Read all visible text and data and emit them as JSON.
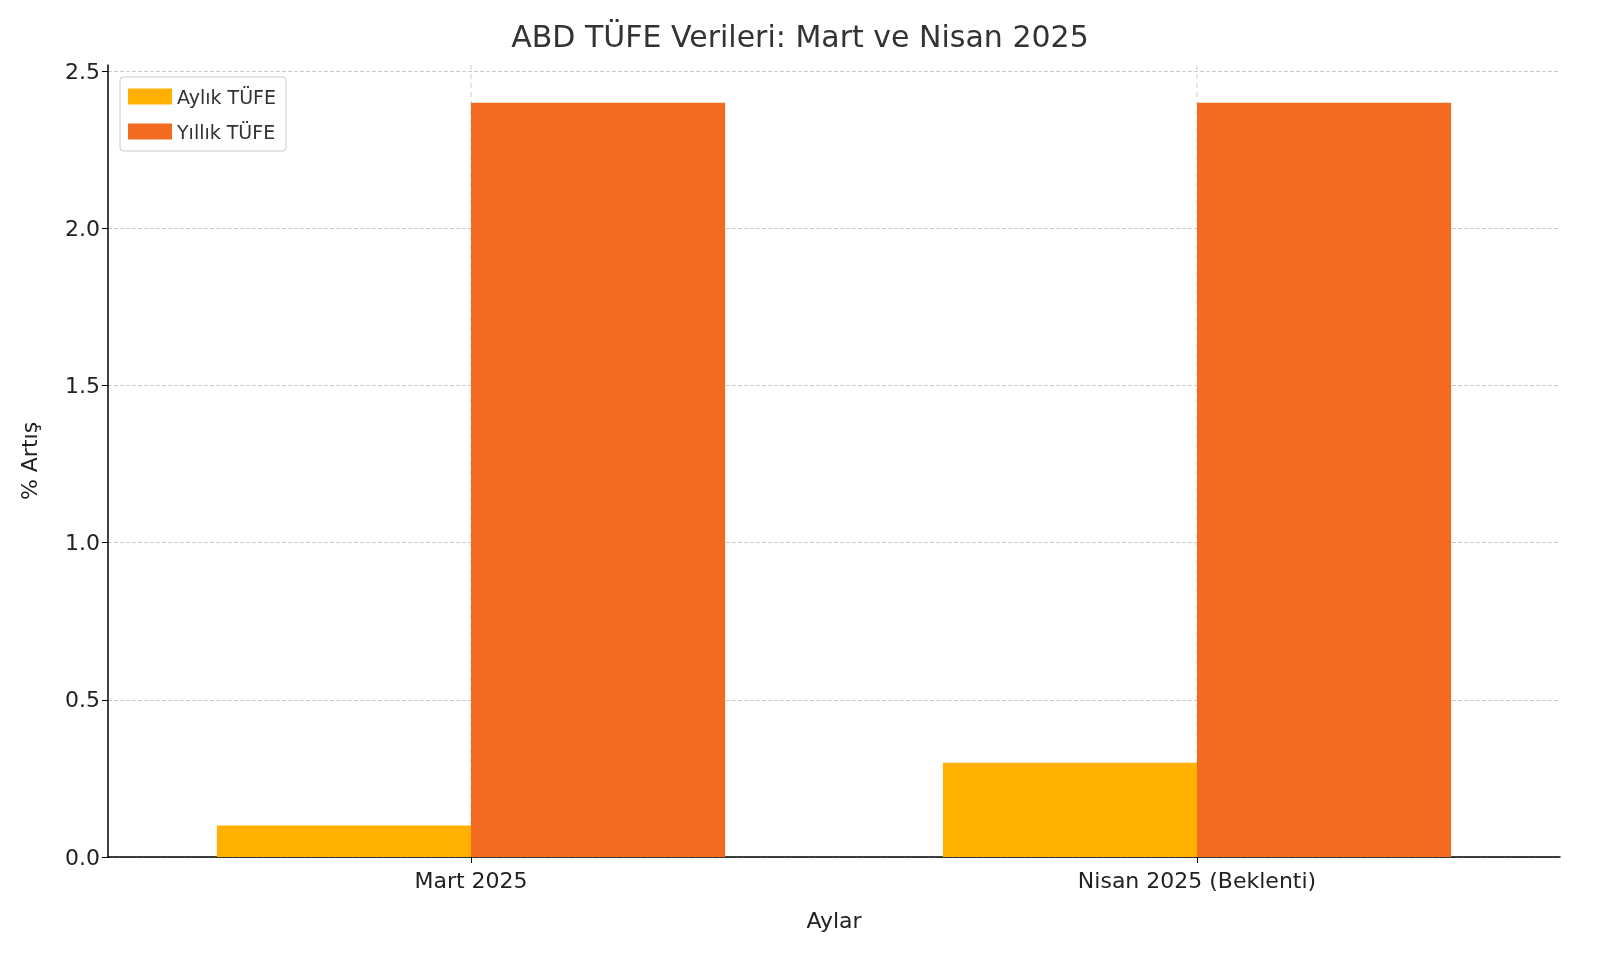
{
  "chart_data": {
    "type": "bar",
    "title": "ABD TÜFE Verileri: Mart ve Nisan 2025",
    "xlabel": "Aylar",
    "ylabel": "% Artış",
    "categories": [
      "Mart 2025",
      "Nisan 2025 (Beklenti)"
    ],
    "series": [
      {
        "name": "Aylık TÜFE",
        "color": "#ffb000",
        "values": [
          0.1,
          0.3
        ]
      },
      {
        "name": "Yıllık TÜFE",
        "color": "#f26b21",
        "values": [
          2.4,
          2.4
        ]
      }
    ],
    "ylim": [
      0,
      2.52
    ],
    "yticks": [
      {
        "value": 0,
        "label": "0.0"
      },
      0.5,
      {
        "value": 1,
        "label": "1.0"
      },
      1.5,
      {
        "value": 2,
        "label": "2.0"
      },
      2.5
    ],
    "grid": true,
    "legend": "top left"
  }
}
